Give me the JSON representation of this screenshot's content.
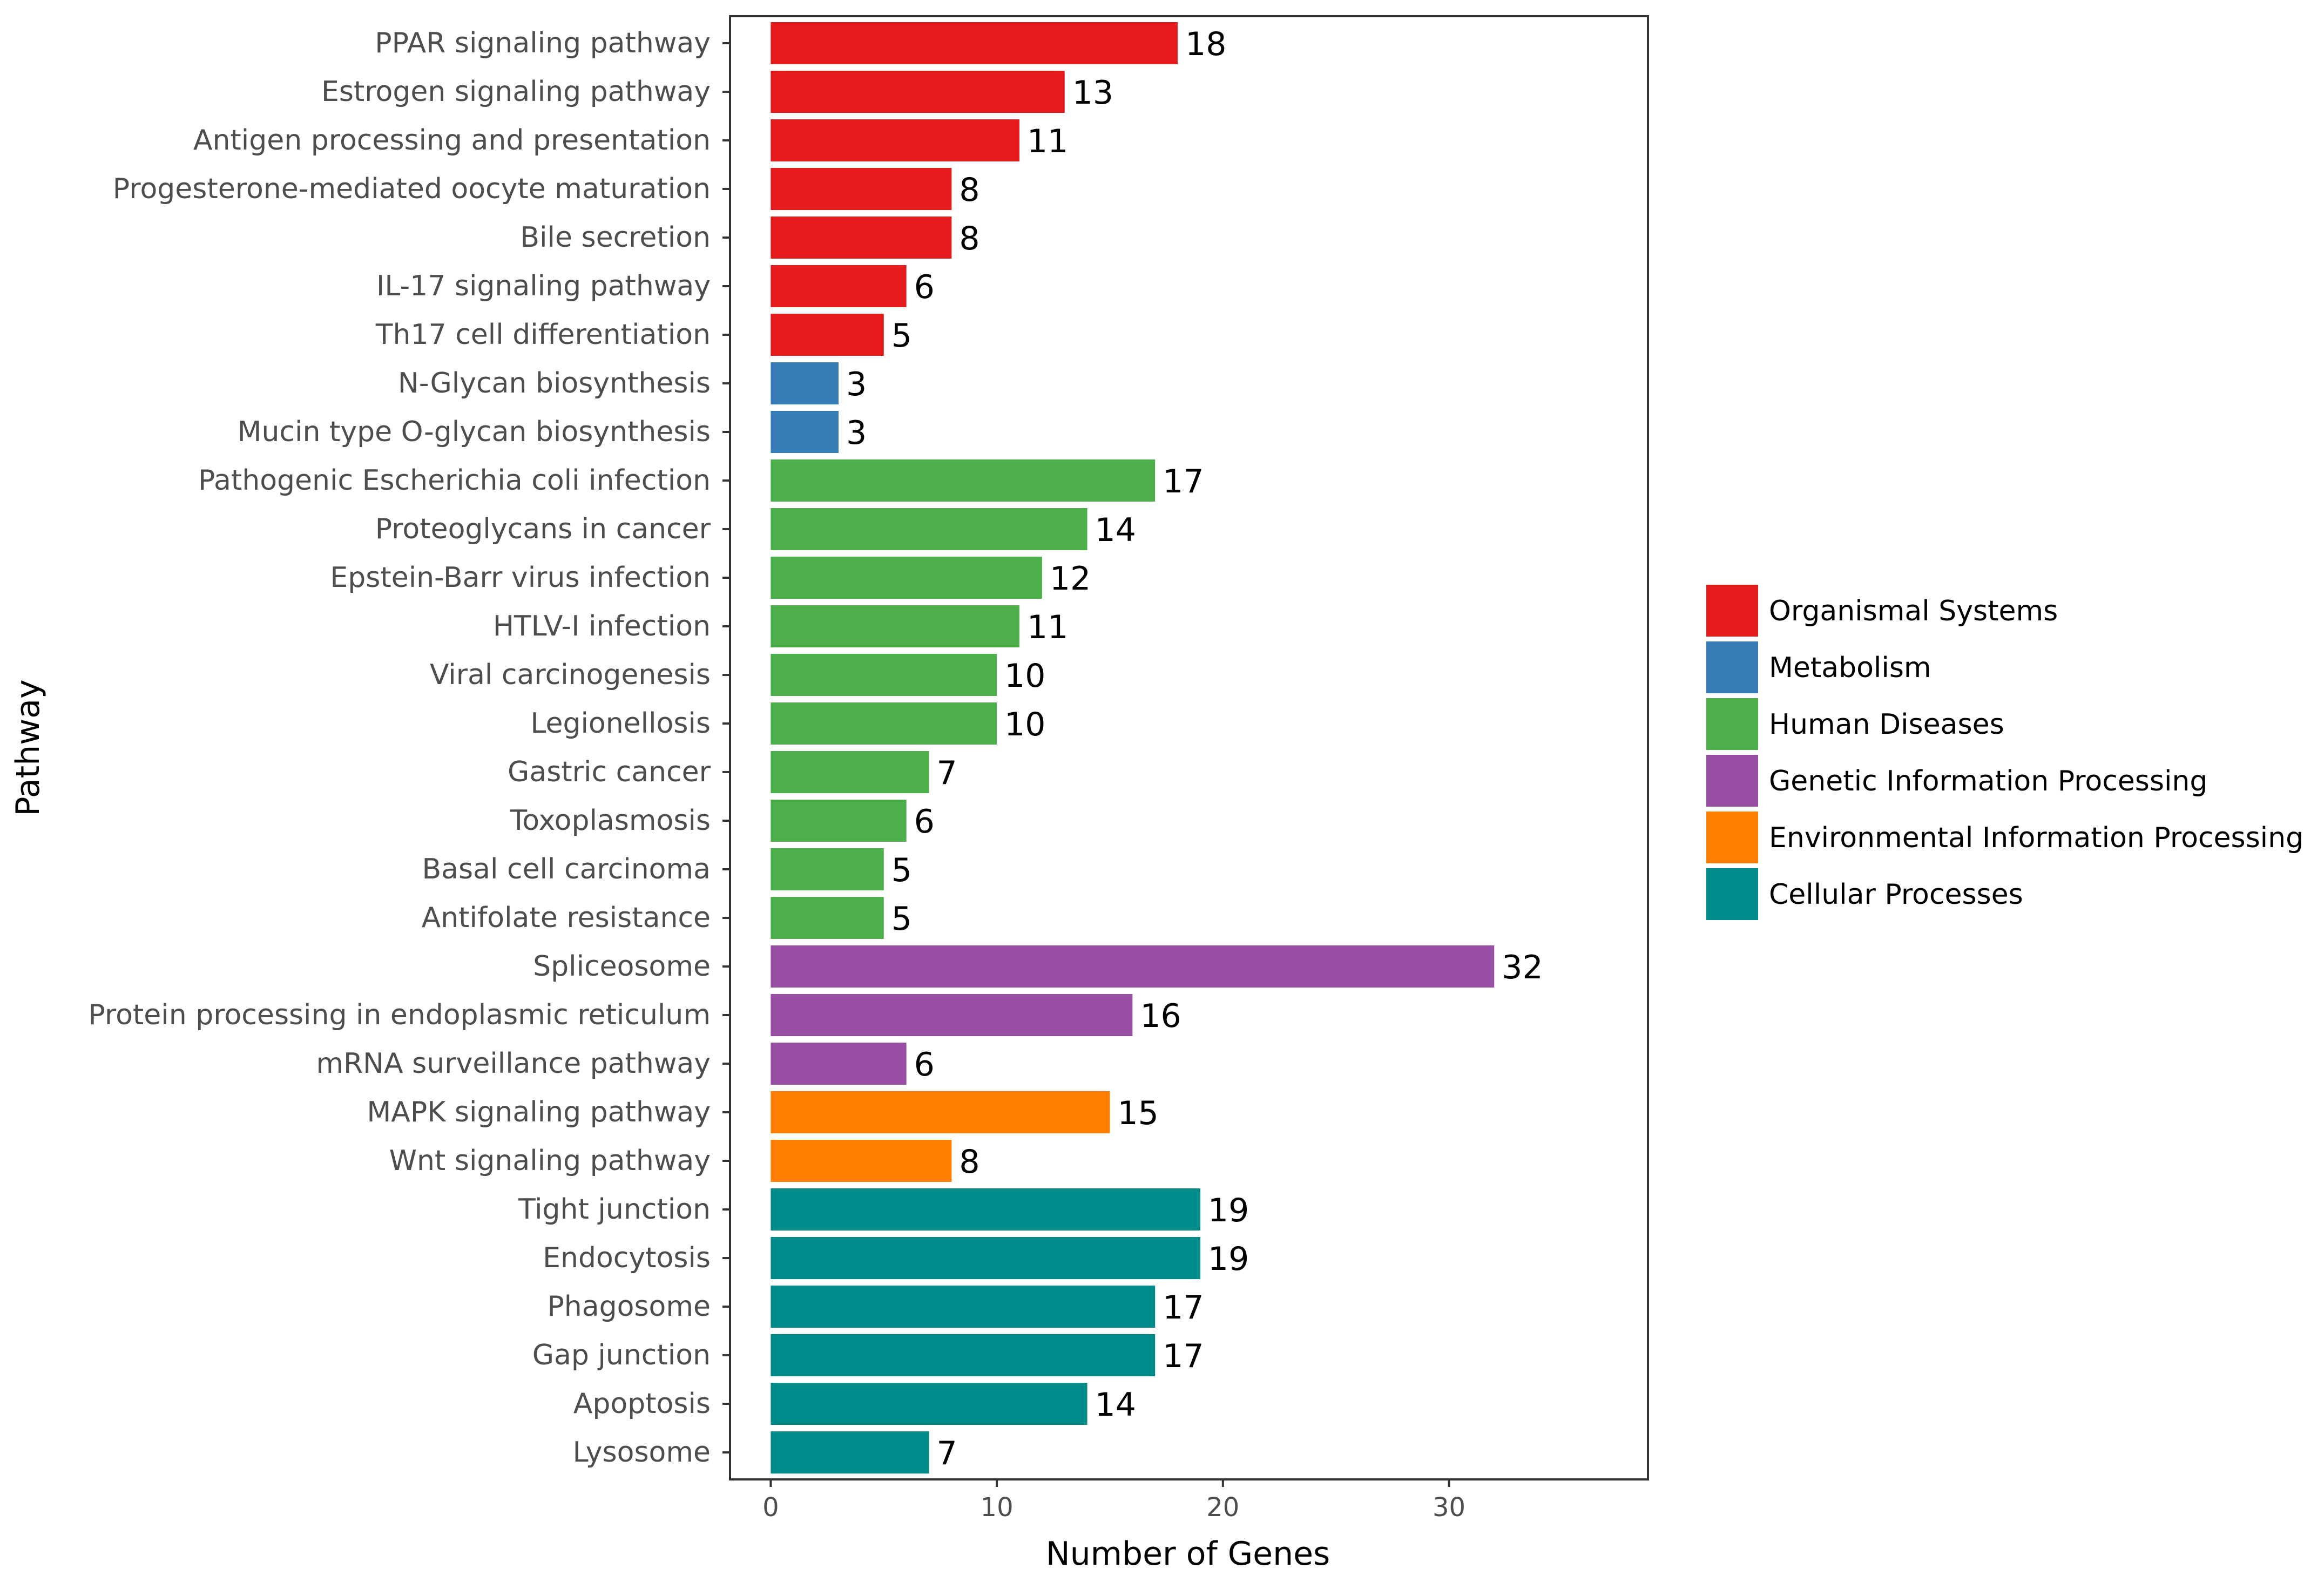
{
  "chart_data": {
    "type": "bar",
    "orientation": "horizontal",
    "title": "",
    "xlabel": "Number of Genes",
    "ylabel": "Pathway",
    "xlim": [
      -1.8,
      38.8
    ],
    "xticks": [
      0,
      10,
      20,
      30
    ],
    "grid": false,
    "legend_position": "right",
    "categories": [
      "PPAR signaling pathway",
      "Estrogen signaling pathway",
      "Antigen processing and presentation",
      "Progesterone-mediated oocyte maturation",
      "Bile secretion",
      "IL-17 signaling pathway",
      "Th17 cell differentiation",
      "N-Glycan biosynthesis",
      "Mucin type O-glycan biosynthesis",
      "Pathogenic Escherichia coli infection",
      "Proteoglycans in cancer",
      "Epstein-Barr virus infection",
      "HTLV-I infection",
      "Viral carcinogenesis",
      "Legionellosis",
      "Gastric cancer",
      "Toxoplasmosis",
      "Basal cell carcinoma",
      "Antifolate resistance",
      "Spliceosome",
      "Protein processing in endoplasmic reticulum",
      "mRNA surveillance pathway",
      "MAPK signaling pathway",
      "Wnt signaling pathway",
      "Tight junction",
      "Endocytosis",
      "Phagosome",
      "Gap junction",
      "Apoptosis",
      "Lysosome"
    ],
    "values": [
      18,
      13,
      11,
      8,
      8,
      6,
      5,
      3,
      3,
      17,
      14,
      12,
      11,
      10,
      10,
      7,
      6,
      5,
      5,
      32,
      16,
      6,
      15,
      8,
      19,
      19,
      17,
      17,
      14,
      7
    ],
    "groups": [
      "Organismal Systems",
      "Organismal Systems",
      "Organismal Systems",
      "Organismal Systems",
      "Organismal Systems",
      "Organismal Systems",
      "Organismal Systems",
      "Metabolism",
      "Metabolism",
      "Human Diseases",
      "Human Diseases",
      "Human Diseases",
      "Human Diseases",
      "Human Diseases",
      "Human Diseases",
      "Human Diseases",
      "Human Diseases",
      "Human Diseases",
      "Human Diseases",
      "Genetic Information Processing",
      "Genetic Information Processing",
      "Genetic Information Processing",
      "Environmental Information Processing",
      "Environmental Information Processing",
      "Cellular Processes",
      "Cellular Processes",
      "Cellular Processes",
      "Cellular Processes",
      "Cellular Processes",
      "Cellular Processes"
    ],
    "legend": [
      {
        "name": "Organismal Systems",
        "color": "#e41a1c"
      },
      {
        "name": "Metabolism",
        "color": "#377eb8"
      },
      {
        "name": "Human Diseases",
        "color": "#4daf4a"
      },
      {
        "name": "Genetic Information Processing",
        "color": "#984ea3"
      },
      {
        "name": "Environmental Information Processing",
        "color": "#ff7f00"
      },
      {
        "name": "Cellular Processes",
        "color": "#008b8b"
      }
    ]
  }
}
